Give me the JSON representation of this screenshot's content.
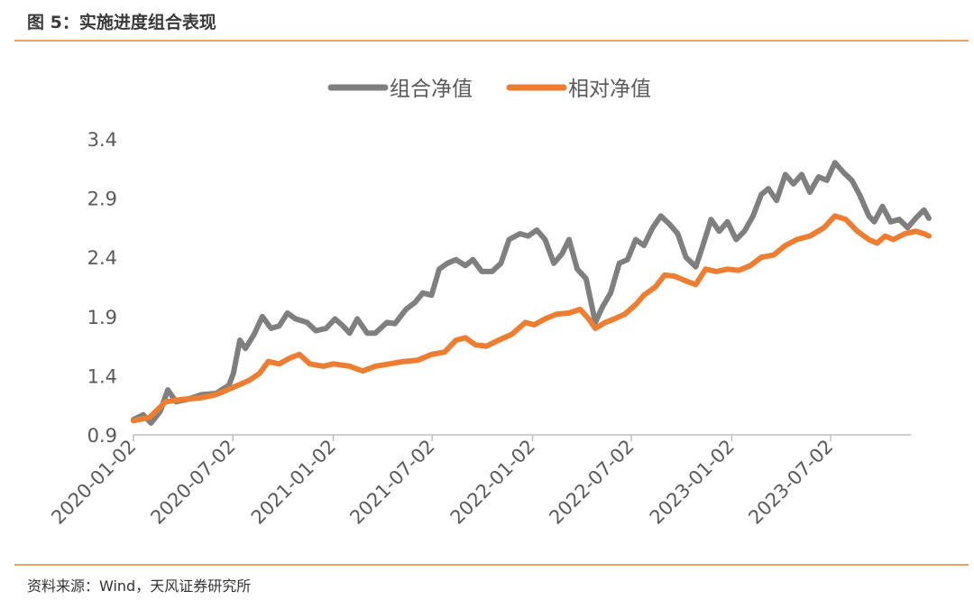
{
  "header": {
    "title": "图 5：实施进度组合表现"
  },
  "footer": {
    "source": "资料来源：Wind，天风证券研究所"
  },
  "colors": {
    "accent_rule": "#f0a05a",
    "series_gray": "#7f7f7f",
    "series_orange": "#ed7d31"
  },
  "chart_data": {
    "type": "line",
    "title": "",
    "xlabel": "",
    "ylabel": "",
    "ylim": [
      0.9,
      3.4
    ],
    "yticks": [
      "0.9",
      "1.4",
      "1.9",
      "2.4",
      "2.9",
      "3.4"
    ],
    "xticks": [
      "2020-01-02",
      "2020-07-02",
      "2021-01-02",
      "2021-07-02",
      "2022-01-02",
      "2022-07-02",
      "2023-01-02",
      "2023-07-02"
    ],
    "xrange": [
      "2020-01-02",
      "2023-12-29"
    ],
    "grid": false,
    "legend_position": "top",
    "series": [
      {
        "name": "组合净值",
        "color": "#7f7f7f",
        "points": [
          [
            "2020-01-02",
            1.03
          ],
          [
            "2020-01-20",
            1.07
          ],
          [
            "2020-02-03",
            1.0
          ],
          [
            "2020-02-20",
            1.1
          ],
          [
            "2020-03-05",
            1.28
          ],
          [
            "2020-03-20",
            1.18
          ],
          [
            "2020-04-10",
            1.2
          ],
          [
            "2020-05-06",
            1.24
          ],
          [
            "2020-06-01",
            1.25
          ],
          [
            "2020-06-25",
            1.32
          ],
          [
            "2020-07-03",
            1.42
          ],
          [
            "2020-07-15",
            1.7
          ],
          [
            "2020-07-25",
            1.63
          ],
          [
            "2020-08-10",
            1.75
          ],
          [
            "2020-08-25",
            1.9
          ],
          [
            "2020-09-10",
            1.8
          ],
          [
            "2020-09-25",
            1.82
          ],
          [
            "2020-10-10",
            1.93
          ],
          [
            "2020-10-25",
            1.88
          ],
          [
            "2020-11-15",
            1.85
          ],
          [
            "2020-12-01",
            1.78
          ],
          [
            "2020-12-20",
            1.8
          ],
          [
            "2021-01-05",
            1.88
          ],
          [
            "2021-01-20",
            1.82
          ],
          [
            "2021-02-01",
            1.76
          ],
          [
            "2021-02-15",
            1.88
          ],
          [
            "2021-03-05",
            1.76
          ],
          [
            "2021-03-20",
            1.76
          ],
          [
            "2021-04-10",
            1.85
          ],
          [
            "2021-04-25",
            1.84
          ],
          [
            "2021-05-15",
            1.96
          ],
          [
            "2021-06-01",
            2.02
          ],
          [
            "2021-06-15",
            2.1
          ],
          [
            "2021-07-01",
            2.08
          ],
          [
            "2021-07-15",
            2.3
          ],
          [
            "2021-07-30",
            2.35
          ],
          [
            "2021-08-15",
            2.38
          ],
          [
            "2021-09-01",
            2.33
          ],
          [
            "2021-09-15",
            2.38
          ],
          [
            "2021-10-01",
            2.28
          ],
          [
            "2021-10-20",
            2.28
          ],
          [
            "2021-11-05",
            2.35
          ],
          [
            "2021-11-20",
            2.55
          ],
          [
            "2021-12-10",
            2.6
          ],
          [
            "2021-12-25",
            2.58
          ],
          [
            "2022-01-10",
            2.63
          ],
          [
            "2022-01-25",
            2.55
          ],
          [
            "2022-02-10",
            2.35
          ],
          [
            "2022-02-25",
            2.43
          ],
          [
            "2022-03-10",
            2.55
          ],
          [
            "2022-03-25",
            2.3
          ],
          [
            "2022-04-10",
            2.22
          ],
          [
            "2022-04-27",
            1.85
          ],
          [
            "2022-05-10",
            1.98
          ],
          [
            "2022-05-25",
            2.1
          ],
          [
            "2022-06-10",
            2.35
          ],
          [
            "2022-06-25",
            2.38
          ],
          [
            "2022-07-10",
            2.55
          ],
          [
            "2022-07-25",
            2.5
          ],
          [
            "2022-08-10",
            2.65
          ],
          [
            "2022-08-25",
            2.75
          ],
          [
            "2022-09-10",
            2.68
          ],
          [
            "2022-09-25",
            2.6
          ],
          [
            "2022-10-10",
            2.4
          ],
          [
            "2022-10-28",
            2.32
          ],
          [
            "2022-11-10",
            2.5
          ],
          [
            "2022-11-25",
            2.72
          ],
          [
            "2022-12-10",
            2.62
          ],
          [
            "2022-12-25",
            2.7
          ],
          [
            "2023-01-10",
            2.55
          ],
          [
            "2023-01-25",
            2.62
          ],
          [
            "2023-02-10",
            2.75
          ],
          [
            "2023-02-25",
            2.93
          ],
          [
            "2023-03-10",
            2.98
          ],
          [
            "2023-03-25",
            2.88
          ],
          [
            "2023-04-10",
            3.1
          ],
          [
            "2023-04-25",
            3.02
          ],
          [
            "2023-05-10",
            3.1
          ],
          [
            "2023-05-25",
            2.95
          ],
          [
            "2023-06-10",
            3.08
          ],
          [
            "2023-06-25",
            3.05
          ],
          [
            "2023-07-10",
            3.2
          ],
          [
            "2023-07-25",
            3.12
          ],
          [
            "2023-08-10",
            3.05
          ],
          [
            "2023-08-25",
            2.92
          ],
          [
            "2023-09-10",
            2.75
          ],
          [
            "2023-09-20",
            2.7
          ],
          [
            "2023-10-05",
            2.83
          ],
          [
            "2023-10-20",
            2.7
          ],
          [
            "2023-11-05",
            2.72
          ],
          [
            "2023-11-20",
            2.65
          ],
          [
            "2023-12-05",
            2.73
          ],
          [
            "2023-12-20",
            2.8
          ],
          [
            "2023-12-29",
            2.73
          ]
        ]
      },
      {
        "name": "相对净值",
        "color": "#ed7d31",
        "points": [
          [
            "2020-01-02",
            1.02
          ],
          [
            "2020-02-01",
            1.05
          ],
          [
            "2020-03-01",
            1.18
          ],
          [
            "2020-04-01",
            1.2
          ],
          [
            "2020-05-01",
            1.21
          ],
          [
            "2020-06-01",
            1.24
          ],
          [
            "2020-07-02",
            1.3
          ],
          [
            "2020-08-01",
            1.36
          ],
          [
            "2020-08-20",
            1.42
          ],
          [
            "2020-09-05",
            1.52
          ],
          [
            "2020-09-25",
            1.5
          ],
          [
            "2020-10-15",
            1.55
          ],
          [
            "2020-11-01",
            1.58
          ],
          [
            "2020-11-20",
            1.5
          ],
          [
            "2020-12-15",
            1.48
          ],
          [
            "2021-01-02",
            1.5
          ],
          [
            "2021-02-01",
            1.48
          ],
          [
            "2021-02-25",
            1.44
          ],
          [
            "2021-03-20",
            1.48
          ],
          [
            "2021-04-15",
            1.5
          ],
          [
            "2021-05-10",
            1.52
          ],
          [
            "2021-06-05",
            1.53
          ],
          [
            "2021-07-01",
            1.58
          ],
          [
            "2021-07-25",
            1.6
          ],
          [
            "2021-08-15",
            1.7
          ],
          [
            "2021-09-01",
            1.72
          ],
          [
            "2021-09-20",
            1.66
          ],
          [
            "2021-10-10",
            1.65
          ],
          [
            "2021-11-01",
            1.7
          ],
          [
            "2021-11-25",
            1.75
          ],
          [
            "2021-12-20",
            1.85
          ],
          [
            "2022-01-05",
            1.83
          ],
          [
            "2022-01-25",
            1.88
          ],
          [
            "2022-02-15",
            1.92
          ],
          [
            "2022-03-10",
            1.93
          ],
          [
            "2022-03-30",
            1.96
          ],
          [
            "2022-04-15",
            1.88
          ],
          [
            "2022-04-27",
            1.8
          ],
          [
            "2022-05-15",
            1.85
          ],
          [
            "2022-06-01",
            1.88
          ],
          [
            "2022-06-20",
            1.92
          ],
          [
            "2022-07-10",
            2.0
          ],
          [
            "2022-07-25",
            2.08
          ],
          [
            "2022-08-15",
            2.15
          ],
          [
            "2022-09-01",
            2.25
          ],
          [
            "2022-09-20",
            2.24
          ],
          [
            "2022-10-10",
            2.2
          ],
          [
            "2022-10-28",
            2.17
          ],
          [
            "2022-11-15",
            2.3
          ],
          [
            "2022-12-05",
            2.28
          ],
          [
            "2022-12-25",
            2.3
          ],
          [
            "2023-01-15",
            2.29
          ],
          [
            "2023-02-05",
            2.33
          ],
          [
            "2023-02-25",
            2.4
          ],
          [
            "2023-03-20",
            2.42
          ],
          [
            "2023-04-10",
            2.5
          ],
          [
            "2023-05-01",
            2.55
          ],
          [
            "2023-05-25",
            2.58
          ],
          [
            "2023-06-20",
            2.65
          ],
          [
            "2023-07-10",
            2.75
          ],
          [
            "2023-07-30",
            2.72
          ],
          [
            "2023-08-20",
            2.62
          ],
          [
            "2023-09-10",
            2.55
          ],
          [
            "2023-09-25",
            2.52
          ],
          [
            "2023-10-10",
            2.58
          ],
          [
            "2023-10-25",
            2.55
          ],
          [
            "2023-11-15",
            2.6
          ],
          [
            "2023-12-05",
            2.62
          ],
          [
            "2023-12-20",
            2.6
          ],
          [
            "2023-12-29",
            2.58
          ]
        ]
      }
    ]
  }
}
